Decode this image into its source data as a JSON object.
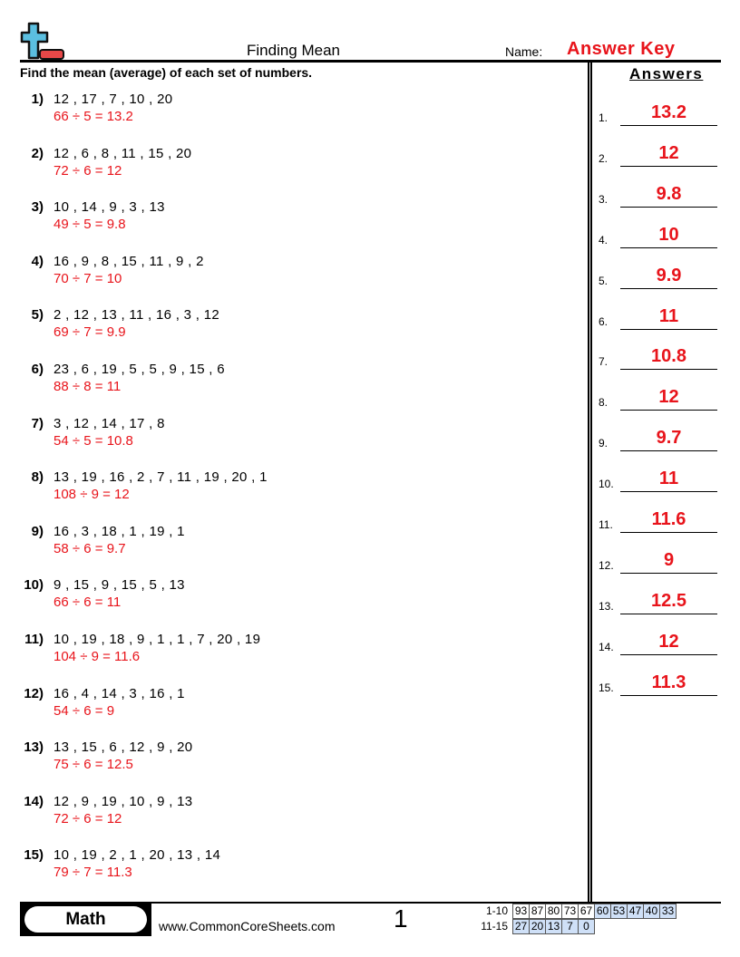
{
  "header": {
    "title": "Finding Mean",
    "name_label": "Name:",
    "name_value": "Answer Key",
    "instructions": "Find the mean (average) of each set of numbers.",
    "answers_heading": "Answers"
  },
  "problems": [
    {
      "num": "1)",
      "values": "12 , 17 , 7 , 10 , 20",
      "work": "66 ÷ 5 = 13.2"
    },
    {
      "num": "2)",
      "values": "12 , 6 , 8 , 11 , 15 , 20",
      "work": "72 ÷ 6 = 12"
    },
    {
      "num": "3)",
      "values": "10 , 14 , 9 , 3 , 13",
      "work": "49 ÷ 5 = 9.8"
    },
    {
      "num": "4)",
      "values": "16 , 9 , 8 , 15 , 11 , 9 , 2",
      "work": "70 ÷ 7 = 10"
    },
    {
      "num": "5)",
      "values": "2 , 12 , 13 , 11 , 16 , 3 , 12",
      "work": "69 ÷ 7 = 9.9"
    },
    {
      "num": "6)",
      "values": "23 , 6 , 19 , 5 , 5 , 9 , 15 , 6",
      "work": "88 ÷ 8 = 11"
    },
    {
      "num": "7)",
      "values": "3 , 12 , 14 , 17 , 8",
      "work": "54 ÷ 5 = 10.8"
    },
    {
      "num": "8)",
      "values": "13 , 19 , 16 , 2 , 7 , 11 , 19 , 20 , 1",
      "work": "108 ÷ 9 = 12"
    },
    {
      "num": "9)",
      "values": "16 , 3 , 18 , 1 , 19 , 1",
      "work": "58 ÷ 6 = 9.7"
    },
    {
      "num": "10)",
      "values": "9 , 15 , 9 , 15 , 5 , 13",
      "work": "66 ÷ 6 = 11"
    },
    {
      "num": "11)",
      "values": "10 , 19 , 18 , 9 , 1 , 1 , 7 , 20 , 19",
      "work": "104 ÷ 9 = 11.6"
    },
    {
      "num": "12)",
      "values": "16 , 4 , 14 , 3 , 16 , 1",
      "work": "54 ÷ 6 = 9"
    },
    {
      "num": "13)",
      "values": "13 , 15 , 6 , 12 , 9 , 20",
      "work": "75 ÷ 6 = 12.5"
    },
    {
      "num": "14)",
      "values": "12 , 9 , 19 , 10 , 9 , 13",
      "work": "72 ÷ 6 = 12"
    },
    {
      "num": "15)",
      "values": "10 , 19 , 2 , 1 , 20 , 13 , 14",
      "work": "79 ÷ 7 = 11.3"
    }
  ],
  "answers": [
    {
      "num": "1.",
      "value": "13.2"
    },
    {
      "num": "2.",
      "value": "12"
    },
    {
      "num": "3.",
      "value": "9.8"
    },
    {
      "num": "4.",
      "value": "10"
    },
    {
      "num": "5.",
      "value": "9.9"
    },
    {
      "num": "6.",
      "value": "11"
    },
    {
      "num": "7.",
      "value": "10.8"
    },
    {
      "num": "8.",
      "value": "12"
    },
    {
      "num": "9.",
      "value": "9.7"
    },
    {
      "num": "10.",
      "value": "11"
    },
    {
      "num": "11.",
      "value": "11.6"
    },
    {
      "num": "12.",
      "value": "9"
    },
    {
      "num": "13.",
      "value": "12.5"
    },
    {
      "num": "14.",
      "value": "12"
    },
    {
      "num": "15.",
      "value": "11.3"
    }
  ],
  "footer": {
    "subject": "Math",
    "site": "www.CommonCoreSheets.com",
    "page": "1",
    "score_rows": [
      {
        "label": "1-10",
        "cells": [
          "93",
          "87",
          "80",
          "73",
          "67",
          "60",
          "53",
          "47",
          "40",
          "33"
        ]
      },
      {
        "label": "11-15",
        "cells": [
          "27",
          "20",
          "13",
          "7",
          "0"
        ]
      }
    ]
  },
  "colors": {
    "answer_red": "#e8141b",
    "score_highlight": "#cfe0f7",
    "logo_blue": "#5bbfe0",
    "logo_red": "#e84848"
  }
}
